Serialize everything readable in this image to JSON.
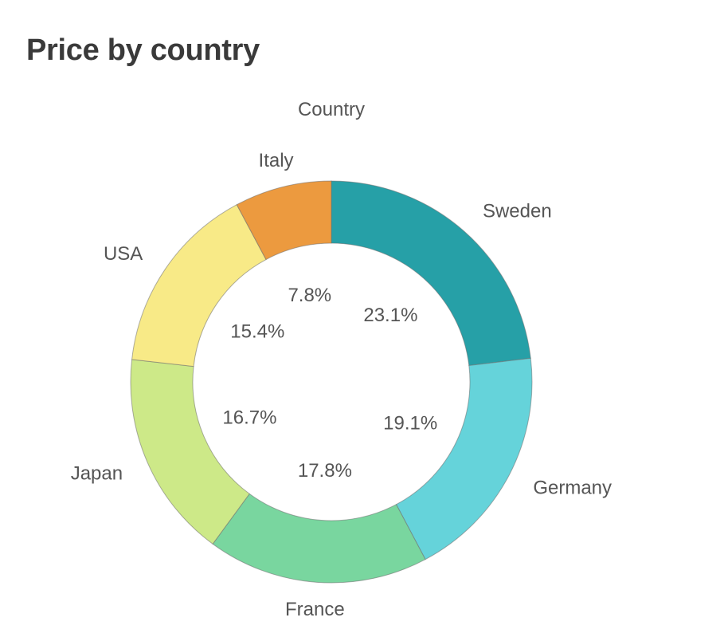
{
  "title": "Price by country",
  "chart_data": {
    "type": "pie",
    "donut": true,
    "title": "Price by country",
    "legend_title": "Country",
    "value_format": "percent",
    "slices": [
      {
        "label": "Sweden",
        "value": 23.1,
        "display": "23.1%",
        "color": "#26a0a7"
      },
      {
        "label": "Germany",
        "value": 19.1,
        "display": "19.1%",
        "color": "#65d3da"
      },
      {
        "label": "France",
        "value": 17.8,
        "display": "17.8%",
        "color": "#79d69f"
      },
      {
        "label": "Japan",
        "value": 16.7,
        "display": "16.7%",
        "color": "#cde988"
      },
      {
        "label": "USA",
        "value": 15.4,
        "display": "15.4%",
        "color": "#f8ea87"
      },
      {
        "label": "Italy",
        "value": 7.8,
        "display": "7.8%",
        "color": "#ec9a3f"
      }
    ]
  }
}
